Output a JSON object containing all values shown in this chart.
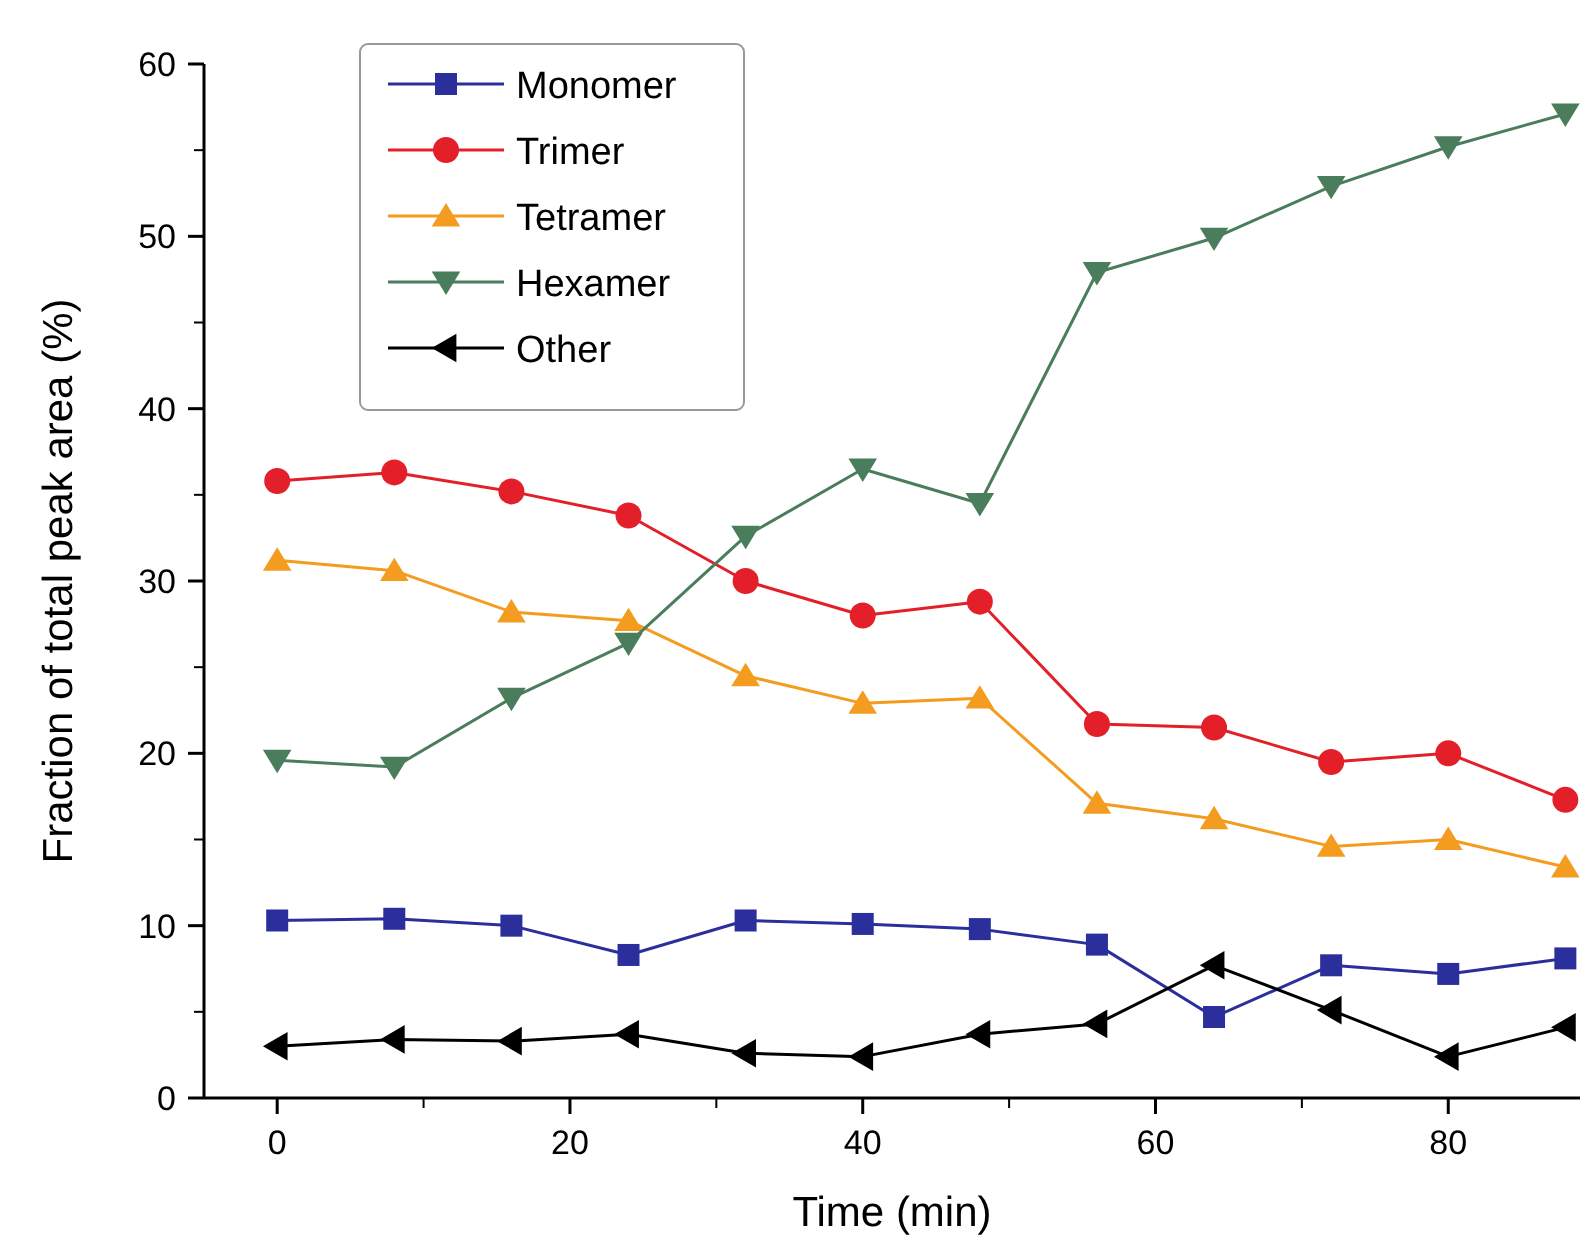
{
  "chart_data": {
    "type": "line",
    "xlabel": "Time (min)",
    "ylabel": "Fraction of total peak area (%)",
    "x": [
      0,
      8,
      16,
      24,
      32,
      40,
      48,
      56,
      64,
      72,
      80,
      88
    ],
    "xlim": [
      -5,
      89
    ],
    "xticks": [
      0,
      20,
      40,
      60,
      80
    ],
    "ylim": [
      0,
      60
    ],
    "yticks": [
      0,
      10,
      20,
      30,
      40,
      50,
      60
    ],
    "legend": "top left",
    "grid": false,
    "series": [
      {
        "name": "Monomer",
        "color": "#2b2f9c",
        "marker": "square",
        "values": [
          10.3,
          10.4,
          10.0,
          8.3,
          10.3,
          10.1,
          9.8,
          8.9,
          4.7,
          7.7,
          7.2,
          8.1
        ]
      },
      {
        "name": "Trimer",
        "color": "#e3202a",
        "marker": "circle",
        "values": [
          35.8,
          36.3,
          35.2,
          33.8,
          30.0,
          28.0,
          28.8,
          21.7,
          21.5,
          19.5,
          20.0,
          17.3
        ]
      },
      {
        "name": "Tetramer",
        "color": "#f39c1f",
        "marker": "triangle",
        "values": [
          31.2,
          30.6,
          28.2,
          27.7,
          24.5,
          22.9,
          23.2,
          17.1,
          16.2,
          14.6,
          15.0,
          13.4
        ]
      },
      {
        "name": "Hexamer",
        "color": "#4a7d5c",
        "marker": "triangle-down",
        "values": [
          19.6,
          19.2,
          23.2,
          26.4,
          32.6,
          36.5,
          34.5,
          47.9,
          49.9,
          52.9,
          55.2,
          57.1
        ]
      },
      {
        "name": "Other",
        "color": "#000000",
        "marker": "triangle-left",
        "values": [
          3.0,
          3.4,
          3.3,
          3.7,
          2.6,
          2.4,
          3.7,
          4.3,
          7.7,
          5.1,
          2.4,
          4.1
        ]
      }
    ]
  }
}
